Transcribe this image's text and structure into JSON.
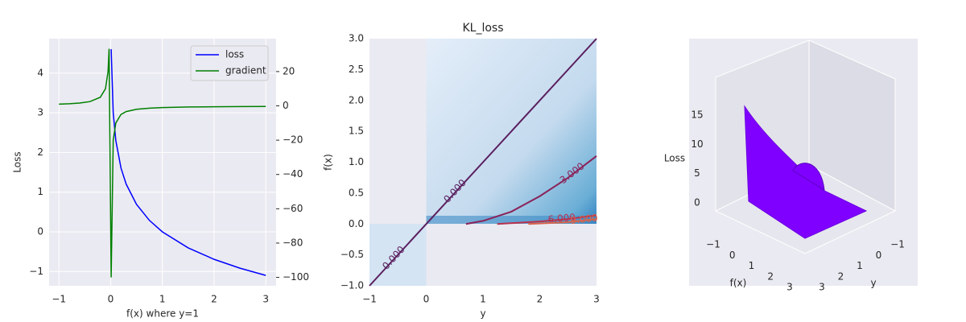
{
  "chart_data": [
    {
      "type": "line",
      "xlabel": "f(x) where y=1",
      "ylabel": "Loss",
      "x": [
        -1,
        -0.8,
        -0.6,
        -0.4,
        -0.2,
        -0.1,
        -0.05,
        -0.03,
        0.01,
        0.05,
        0.1,
        0.2,
        0.3,
        0.5,
        0.75,
        1,
        1.5,
        2,
        2.5,
        3
      ],
      "series": [
        {
          "name": "loss",
          "color": "#0000ff",
          "values": [
            null,
            null,
            null,
            null,
            null,
            null,
            null,
            null,
            4.605,
            2.996,
            2.303,
            1.609,
            1.204,
            0.693,
            0.288,
            0,
            -0.405,
            -0.693,
            -0.916,
            -1.099
          ]
        },
        {
          "name": "gradient",
          "color": "#008000",
          "axis": "y2",
          "values": [
            1,
            1.25,
            1.667,
            2.5,
            5,
            10,
            20,
            33.3,
            -100,
            -20,
            -10,
            -5,
            -3.33,
            -2,
            -1.33,
            -1,
            -0.667,
            -0.5,
            -0.4,
            -0.333
          ]
        }
      ],
      "xlim": [
        -1.19,
        3.2
      ],
      "ylim": [
        -1.36,
        4.87
      ],
      "y2lim": [
        -104.9,
        39.2
      ],
      "xticks": [
        {
          "value": -1,
          "label": "−1"
        },
        0,
        1,
        2,
        3
      ],
      "yticks": [
        {
          "value": -1,
          "label": "−1"
        },
        0,
        1,
        2,
        3,
        4
      ],
      "y2ticks": [
        {
          "value": -100,
          "label": "−100"
        },
        {
          "value": -80,
          "label": "−80"
        },
        {
          "value": -60,
          "label": "−60"
        },
        {
          "value": -40,
          "label": "−40"
        },
        {
          "value": -20,
          "label": "−20"
        },
        0,
        20
      ],
      "legend": "upper right",
      "grid": true
    },
    {
      "type": "contour",
      "title": "KL_loss",
      "xlabel": "y",
      "ylabel": "f(x)",
      "xlim": [
        -1,
        3
      ],
      "ylim": [
        -1,
        3
      ],
      "xticks": [
        {
          "value": -1,
          "label": "−1"
        },
        0,
        1,
        2,
        3
      ],
      "yticks": [
        {
          "value": -1,
          "label": "−1.0"
        },
        {
          "value": -0.5,
          "label": "−0.5"
        },
        {
          "value": 0,
          "label": "0.0"
        },
        0.5,
        {
          "value": 1,
          "label": "1.0"
        },
        1.5,
        {
          "value": 2,
          "label": "2.0"
        },
        2.5,
        {
          "value": 3,
          "label": "3.0"
        }
      ],
      "contours": [
        {
          "value": 0,
          "label": "0.000",
          "color": "#5a1f5e",
          "x": [
            -1,
            3
          ],
          "y": [
            -1,
            3
          ]
        },
        {
          "value": 3,
          "label": "3.000",
          "color": "#8a2258",
          "x": [
            0.7,
            1,
            1.5,
            2,
            2.5,
            3
          ],
          "y": [
            0,
            0.05,
            0.2,
            0.45,
            0.75,
            1.1
          ]
        },
        {
          "value": 6,
          "label": "6.000",
          "color": "#b8324f",
          "x": [
            1.25,
            2,
            2.5,
            3
          ],
          "y": [
            0,
            0.04,
            0.08,
            0.14
          ]
        },
        {
          "value": 9,
          "label": "9.000",
          "color": "#d9634a",
          "x": [
            1.8,
            2.5,
            3
          ],
          "y": [
            0,
            0.03,
            0.08
          ]
        }
      ]
    },
    {
      "type": "surface3d",
      "xlabel": "f(x)",
      "ylabel": "y",
      "zlabel": "Loss",
      "color": "#8000ff",
      "xlim": [
        -1,
        3
      ],
      "ylim": [
        -1,
        3
      ],
      "zlim": [
        0,
        15
      ],
      "xticks": [
        {
          "value": -1,
          "label": "−1"
        },
        0,
        1,
        2,
        3
      ],
      "yticks": [
        {
          "value": -1,
          "label": "−1"
        },
        0,
        1,
        2,
        3
      ],
      "zticks": [
        0,
        5,
        10,
        15
      ]
    }
  ]
}
